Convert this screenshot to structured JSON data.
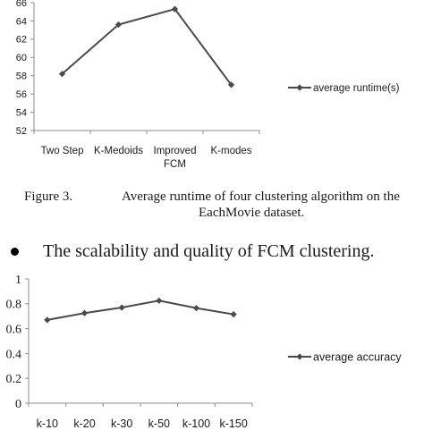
{
  "figure_caption": {
    "label": "Figure 3.",
    "line1": "Average runtime of four clustering algorithm on the",
    "line2": "EachMovie dataset."
  },
  "bullet_text": "The scalability and quality of FCM clustering.",
  "chart_data": [
    {
      "type": "line",
      "categories": [
        [
          "Two Step"
        ],
        [
          "K-Medoids"
        ],
        [
          "Improved",
          "FCM"
        ],
        [
          "K-modes"
        ]
      ],
      "series": [
        {
          "name": "average runtime(s)",
          "values": [
            58.2,
            63.6,
            65.3,
            57.0
          ]
        }
      ],
      "yticks": [
        "52",
        "54",
        "56",
        "58",
        "60",
        "62",
        "64",
        "66"
      ],
      "ylim": [
        52,
        66
      ],
      "grid": false,
      "legend_position": "right",
      "colors": {
        "line": "#4a4a4a",
        "axis": "#8c8c8c"
      }
    },
    {
      "type": "line",
      "categories": [
        [
          "k-10"
        ],
        [
          "k-20"
        ],
        [
          "k-30"
        ],
        [
          "k-50"
        ],
        [
          "k-100"
        ],
        [
          "k-150"
        ]
      ],
      "series": [
        {
          "name": "average accuracy",
          "values": [
            0.67,
            0.725,
            0.77,
            0.825,
            0.765,
            0.715
          ]
        }
      ],
      "yticks": [
        "0",
        "0.2",
        "0.4",
        "0.6",
        "0.8",
        "1"
      ],
      "ylim": [
        0,
        1
      ],
      "grid": false,
      "legend_position": "right",
      "colors": {
        "line": "#4a4a4a",
        "axis": "#8c8c8c"
      }
    }
  ]
}
